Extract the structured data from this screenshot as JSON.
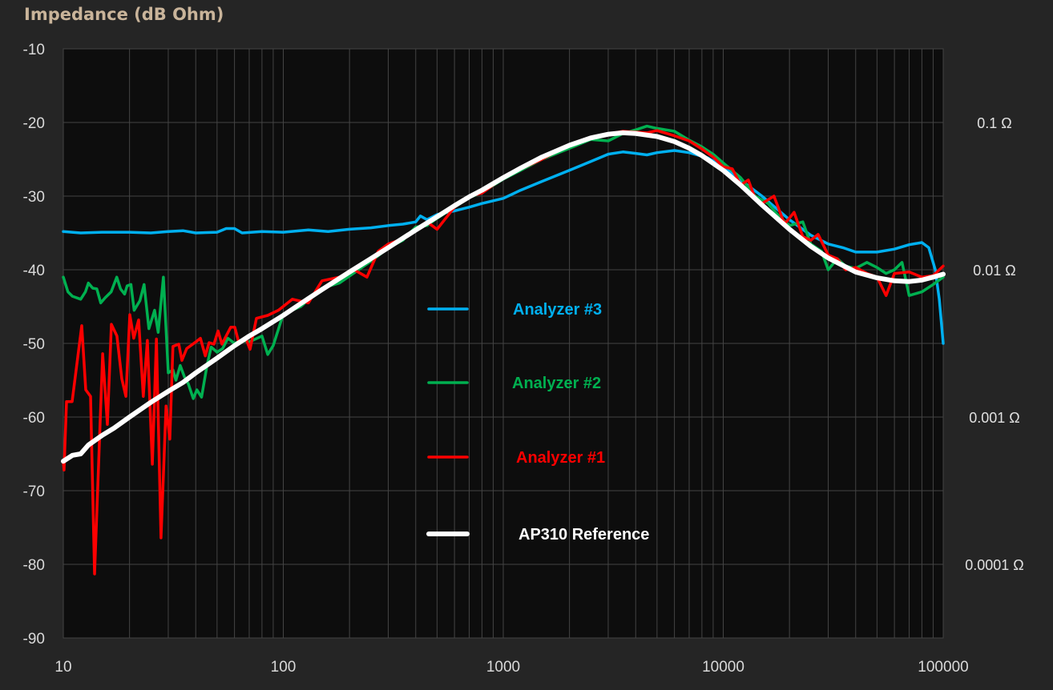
{
  "chart_data": {
    "type": "line",
    "title": "Impedance (dB Ohm)",
    "xscale": "log",
    "xlim": [
      10,
      100000
    ],
    "ylim": [
      -90,
      -10
    ],
    "x_ticks": [
      "10",
      "100",
      "1000",
      "10000",
      "100000"
    ],
    "y_ticks": [
      "-10",
      "-20",
      "-30",
      "-40",
      "-50",
      "-60",
      "-70",
      "-80",
      "-90"
    ],
    "y2_ticks": [
      {
        "label": "0.1 Ω",
        "db": -20
      },
      {
        "label": "0.01 Ω",
        "db": -40
      },
      {
        "label": "0.001 Ω",
        "db": -60
      },
      {
        "label": "0.0001 Ω",
        "db": -80
      }
    ],
    "grid": true,
    "legend_placement": "center",
    "series": [
      {
        "name": "Analyzer #3",
        "color": "#00b0f0",
        "points": [
          [
            10,
            -34.8
          ],
          [
            12,
            -35
          ],
          [
            15,
            -34.9
          ],
          [
            20,
            -34.9
          ],
          [
            25,
            -35
          ],
          [
            30,
            -34.8
          ],
          [
            35,
            -34.7
          ],
          [
            40,
            -35
          ],
          [
            50,
            -34.9
          ],
          [
            55,
            -34.4
          ],
          [
            60,
            -34.4
          ],
          [
            65,
            -35
          ],
          [
            80,
            -34.8
          ],
          [
            100,
            -34.9
          ],
          [
            130,
            -34.6
          ],
          [
            160,
            -34.8
          ],
          [
            200,
            -34.5
          ],
          [
            250,
            -34.3
          ],
          [
            300,
            -34
          ],
          [
            350,
            -33.8
          ],
          [
            400,
            -33.5
          ],
          [
            420,
            -32.7
          ],
          [
            450,
            -33.2
          ],
          [
            500,
            -32.5
          ],
          [
            600,
            -32
          ],
          [
            700,
            -31.5
          ],
          [
            800,
            -31
          ],
          [
            1000,
            -30.3
          ],
          [
            1200,
            -29.2
          ],
          [
            1500,
            -28
          ],
          [
            2000,
            -26.5
          ],
          [
            2500,
            -25.3
          ],
          [
            3000,
            -24.3
          ],
          [
            3500,
            -24
          ],
          [
            4000,
            -24.2
          ],
          [
            4500,
            -24.4
          ],
          [
            5000,
            -24.1
          ],
          [
            6000,
            -23.8
          ],
          [
            7000,
            -24.1
          ],
          [
            8500,
            -24.8
          ],
          [
            10000,
            -26
          ],
          [
            12000,
            -27.8
          ],
          [
            15000,
            -30
          ],
          [
            20000,
            -33.2
          ],
          [
            25000,
            -35.3
          ],
          [
            30000,
            -36.5
          ],
          [
            35000,
            -37
          ],
          [
            40000,
            -37.6
          ],
          [
            50000,
            -37.6
          ],
          [
            60000,
            -37.2
          ],
          [
            70000,
            -36.6
          ],
          [
            80000,
            -36.3
          ],
          [
            86000,
            -37
          ],
          [
            92000,
            -40
          ],
          [
            96000,
            -44
          ],
          [
            100000,
            -50
          ]
        ]
      },
      {
        "name": "Analyzer #2",
        "color": "#00b050",
        "points": [
          [
            10,
            -41
          ],
          [
            10.5,
            -43
          ],
          [
            11,
            -43.6
          ],
          [
            12,
            -44
          ],
          [
            12.6,
            -43
          ],
          [
            13,
            -41.8
          ],
          [
            13.6,
            -42.5
          ],
          [
            14.2,
            -42.6
          ],
          [
            14.8,
            -44.5
          ],
          [
            15.5,
            -43.8
          ],
          [
            16.5,
            -43
          ],
          [
            17.5,
            -41
          ],
          [
            18.2,
            -42.6
          ],
          [
            19,
            -43.3
          ],
          [
            19.5,
            -42.2
          ],
          [
            20.3,
            -42
          ],
          [
            21,
            -45.5
          ],
          [
            22.3,
            -44.2
          ],
          [
            23.3,
            -42
          ],
          [
            24.5,
            -48
          ],
          [
            26,
            -45.5
          ],
          [
            27,
            -48.5
          ],
          [
            28.5,
            -41
          ],
          [
            30,
            -54
          ],
          [
            31.5,
            -53.6
          ],
          [
            32.5,
            -55
          ],
          [
            34,
            -53
          ],
          [
            35.5,
            -54.5
          ],
          [
            37,
            -55.5
          ],
          [
            39,
            -57.5
          ],
          [
            40.5,
            -56.3
          ],
          [
            42.5,
            -57.3
          ],
          [
            45,
            -53
          ],
          [
            47,
            -50.5
          ],
          [
            50,
            -51.2
          ],
          [
            53,
            -50.7
          ],
          [
            56,
            -49.3
          ],
          [
            60,
            -50
          ],
          [
            65,
            -49.6
          ],
          [
            70,
            -49.8
          ],
          [
            80,
            -49
          ],
          [
            85,
            -51.5
          ],
          [
            90,
            -50.3
          ],
          [
            100,
            -46
          ],
          [
            120,
            -45
          ],
          [
            150,
            -42.5
          ],
          [
            180,
            -41.8
          ],
          [
            220,
            -40
          ],
          [
            260,
            -38.5
          ],
          [
            300,
            -37
          ],
          [
            350,
            -36
          ],
          [
            400,
            -34.2
          ],
          [
            450,
            -34
          ],
          [
            500,
            -33
          ],
          [
            600,
            -31.5
          ],
          [
            700,
            -30.2
          ],
          [
            800,
            -29.5
          ],
          [
            1000,
            -27.7
          ],
          [
            1200,
            -26.5
          ],
          [
            1500,
            -25
          ],
          [
            2000,
            -23.5
          ],
          [
            2500,
            -22.3
          ],
          [
            3000,
            -22.5
          ],
          [
            3500,
            -21.5
          ],
          [
            4000,
            -21
          ],
          [
            4500,
            -20.5
          ],
          [
            5000,
            -20.8
          ],
          [
            6000,
            -21.2
          ],
          [
            7000,
            -22.4
          ],
          [
            8000,
            -23.3
          ],
          [
            9000,
            -24.3
          ],
          [
            10000,
            -25.5
          ],
          [
            12000,
            -27.5
          ],
          [
            14000,
            -30
          ],
          [
            16000,
            -31
          ],
          [
            18000,
            -32.8
          ],
          [
            20000,
            -34
          ],
          [
            23000,
            -33.5
          ],
          [
            25000,
            -36.5
          ],
          [
            28000,
            -37.5
          ],
          [
            30000,
            -40
          ],
          [
            33000,
            -38.5
          ],
          [
            36000,
            -39.5
          ],
          [
            40000,
            -39.8
          ],
          [
            45000,
            -39
          ],
          [
            50000,
            -39.7
          ],
          [
            55000,
            -40.5
          ],
          [
            60000,
            -40
          ],
          [
            65000,
            -39
          ],
          [
            70000,
            -43.5
          ],
          [
            80000,
            -43
          ],
          [
            90000,
            -42
          ],
          [
            100000,
            -41
          ]
        ]
      },
      {
        "name": "Analyzer #1",
        "color": "#ff0000",
        "points": [
          [
            10,
            -66
          ],
          [
            10.08,
            -67.2
          ],
          [
            10.34,
            -57.9
          ],
          [
            10.97,
            -57.9
          ],
          [
            12.13,
            -47.6
          ],
          [
            12.65,
            -56.3
          ],
          [
            13.3,
            -57.2
          ],
          [
            13.87,
            -81.3
          ],
          [
            15.1,
            -51.4
          ],
          [
            15.86,
            -61
          ],
          [
            16.54,
            -47.4
          ],
          [
            17.53,
            -49
          ],
          [
            18.45,
            -54.8
          ],
          [
            19.25,
            -57.2
          ],
          [
            20.07,
            -46.1
          ],
          [
            20.9,
            -49.3
          ],
          [
            22.0,
            -46.8
          ],
          [
            23.1,
            -57.2
          ],
          [
            24.1,
            -49.6
          ],
          [
            25.4,
            -66.4
          ],
          [
            26.5,
            -49.4
          ],
          [
            27.8,
            -76.4
          ],
          [
            29.3,
            -58.5
          ],
          [
            30.5,
            -63
          ],
          [
            31.5,
            -50.4
          ],
          [
            33.5,
            -50.1
          ],
          [
            34.6,
            -52.3
          ],
          [
            36.4,
            -50.7
          ],
          [
            39.6,
            -49.9
          ],
          [
            42.0,
            -49.3
          ],
          [
            44.2,
            -51.7
          ],
          [
            46.0,
            -49.9
          ],
          [
            48.4,
            -50.1
          ],
          [
            50.5,
            -48.3
          ],
          [
            52.6,
            -50.1
          ],
          [
            57.7,
            -47.8
          ],
          [
            60.2,
            -47.8
          ],
          [
            62.8,
            -49.9
          ],
          [
            67.6,
            -49.3
          ],
          [
            70.6,
            -50.8
          ],
          [
            75.5,
            -46.6
          ],
          [
            85,
            -46.2
          ],
          [
            95,
            -45.5
          ],
          [
            110,
            -44
          ],
          [
            130,
            -44.5
          ],
          [
            150,
            -41.5
          ],
          [
            180,
            -41
          ],
          [
            210,
            -40
          ],
          [
            240,
            -41
          ],
          [
            270,
            -37.5
          ],
          [
            300,
            -36.5
          ],
          [
            350,
            -35.8
          ],
          [
            400,
            -34.5
          ],
          [
            450,
            -33.5
          ],
          [
            500,
            -34.5
          ],
          [
            600,
            -31.5
          ],
          [
            700,
            -30
          ],
          [
            800,
            -29.6
          ],
          [
            1000,
            -27.5
          ],
          [
            1200,
            -26.3
          ],
          [
            1500,
            -25
          ],
          [
            2000,
            -23
          ],
          [
            2500,
            -22
          ],
          [
            3000,
            -21.6
          ],
          [
            3500,
            -21.2
          ],
          [
            4000,
            -21.3
          ],
          [
            4500,
            -21.4
          ],
          [
            5000,
            -21.1
          ],
          [
            6000,
            -21.8
          ],
          [
            7000,
            -22.5
          ],
          [
            8000,
            -23.6
          ],
          [
            9000,
            -24.7
          ],
          [
            10000,
            -26
          ],
          [
            11000,
            -26.3
          ],
          [
            12000,
            -28.5
          ],
          [
            13000,
            -27.8
          ],
          [
            14000,
            -30.4
          ],
          [
            15000,
            -31
          ],
          [
            17000,
            -30
          ],
          [
            19000,
            -33.8
          ],
          [
            21000,
            -32.2
          ],
          [
            23000,
            -35.5
          ],
          [
            25000,
            -36
          ],
          [
            27000,
            -35.2
          ],
          [
            30000,
            -38
          ],
          [
            33000,
            -38.5
          ],
          [
            36000,
            -40
          ],
          [
            40000,
            -39.7
          ],
          [
            45000,
            -40.5
          ],
          [
            50000,
            -41
          ],
          [
            55000,
            -43.5
          ],
          [
            60000,
            -40.5
          ],
          [
            70000,
            -40.3
          ],
          [
            80000,
            -41
          ],
          [
            90000,
            -40.8
          ],
          [
            100000,
            -39.5
          ]
        ]
      },
      {
        "name": "AP310 Reference",
        "color": "#ffffff",
        "points": [
          [
            10,
            -66
          ],
          [
            11,
            -65.2
          ],
          [
            12,
            -65
          ],
          [
            13,
            -63.8
          ],
          [
            15,
            -62.5
          ],
          [
            17,
            -61.5
          ],
          [
            20,
            -60
          ],
          [
            25,
            -58
          ],
          [
            30,
            -56.5
          ],
          [
            35,
            -55.3
          ],
          [
            40,
            -54
          ],
          [
            50,
            -52
          ],
          [
            60,
            -50.3
          ],
          [
            70,
            -49
          ],
          [
            80,
            -48
          ],
          [
            100,
            -46.2
          ],
          [
            120,
            -44.6
          ],
          [
            150,
            -42.7
          ],
          [
            200,
            -40.3
          ],
          [
            250,
            -38.5
          ],
          [
            300,
            -37
          ],
          [
            400,
            -34.6
          ],
          [
            500,
            -32.8
          ],
          [
            600,
            -31.3
          ],
          [
            700,
            -30.1
          ],
          [
            800,
            -29.2
          ],
          [
            1000,
            -27.5
          ],
          [
            1200,
            -26.2
          ],
          [
            1500,
            -24.7
          ],
          [
            2000,
            -23.1
          ],
          [
            2500,
            -22.1
          ],
          [
            3000,
            -21.6
          ],
          [
            3500,
            -21.4
          ],
          [
            4000,
            -21.5
          ],
          [
            5000,
            -21.9
          ],
          [
            6000,
            -22.6
          ],
          [
            7000,
            -23.5
          ],
          [
            8000,
            -24.5
          ],
          [
            10000,
            -26.5
          ],
          [
            12000,
            -28.5
          ],
          [
            15000,
            -31.2
          ],
          [
            20000,
            -34.5
          ],
          [
            25000,
            -36.8
          ],
          [
            30000,
            -38.4
          ],
          [
            40000,
            -40.3
          ],
          [
            50000,
            -41.1
          ],
          [
            60000,
            -41.5
          ],
          [
            70000,
            -41.6
          ],
          [
            80000,
            -41.4
          ],
          [
            90000,
            -41
          ],
          [
            100000,
            -40.6
          ]
        ]
      }
    ]
  }
}
